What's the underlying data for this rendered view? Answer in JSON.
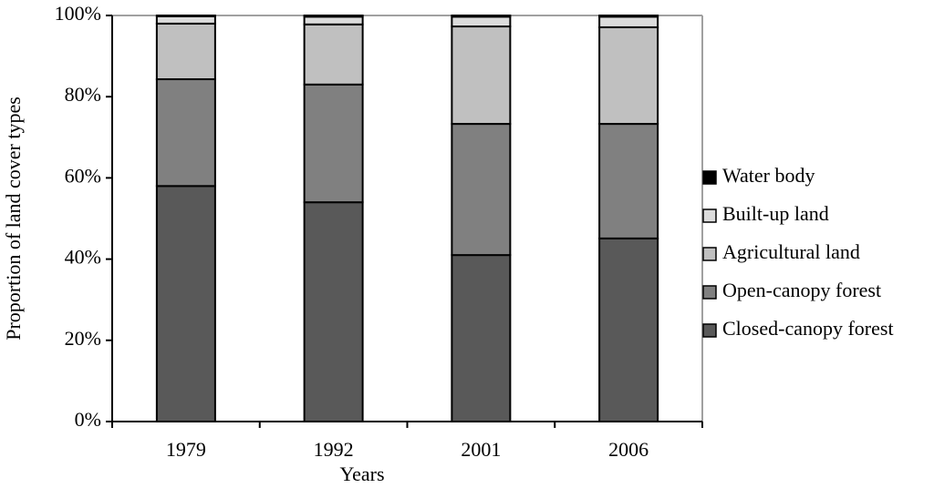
{
  "chart_data": {
    "type": "stacked_bar",
    "x_label": "Years",
    "y_label": "Proportion of land cover types",
    "categories": [
      "1979",
      "1992",
      "2001",
      "2006"
    ],
    "series": [
      {
        "name": "Closed-canopy forest",
        "color": "#595959",
        "values": [
          58,
          54,
          41,
          45.1
        ]
      },
      {
        "name": "Open-canopy forest",
        "color": "#808080",
        "values": [
          26.3,
          29,
          32.3,
          28.2
        ]
      },
      {
        "name": "Agricultural land",
        "color": "#c0c0c0",
        "values": [
          13.7,
          14.8,
          24,
          23.8
        ]
      },
      {
        "name": "Built-up land",
        "color": "#dcdcdc",
        "values": [
          1.8,
          1.9,
          2.4,
          2.6
        ]
      },
      {
        "name": "Water body",
        "color": "#000000",
        "values": [
          0.2,
          0.3,
          0.3,
          0.3
        ]
      }
    ],
    "ylim": [
      0,
      100
    ],
    "yticks": [
      {
        "value": 0,
        "label": "0%"
      },
      {
        "value": 20,
        "label": "20%"
      },
      {
        "value": 40,
        "label": "40%"
      },
      {
        "value": 60,
        "label": "60%"
      },
      {
        "value": 80,
        "label": "80%"
      },
      {
        "value": 100,
        "label": "100%"
      }
    ],
    "legend": "right"
  }
}
